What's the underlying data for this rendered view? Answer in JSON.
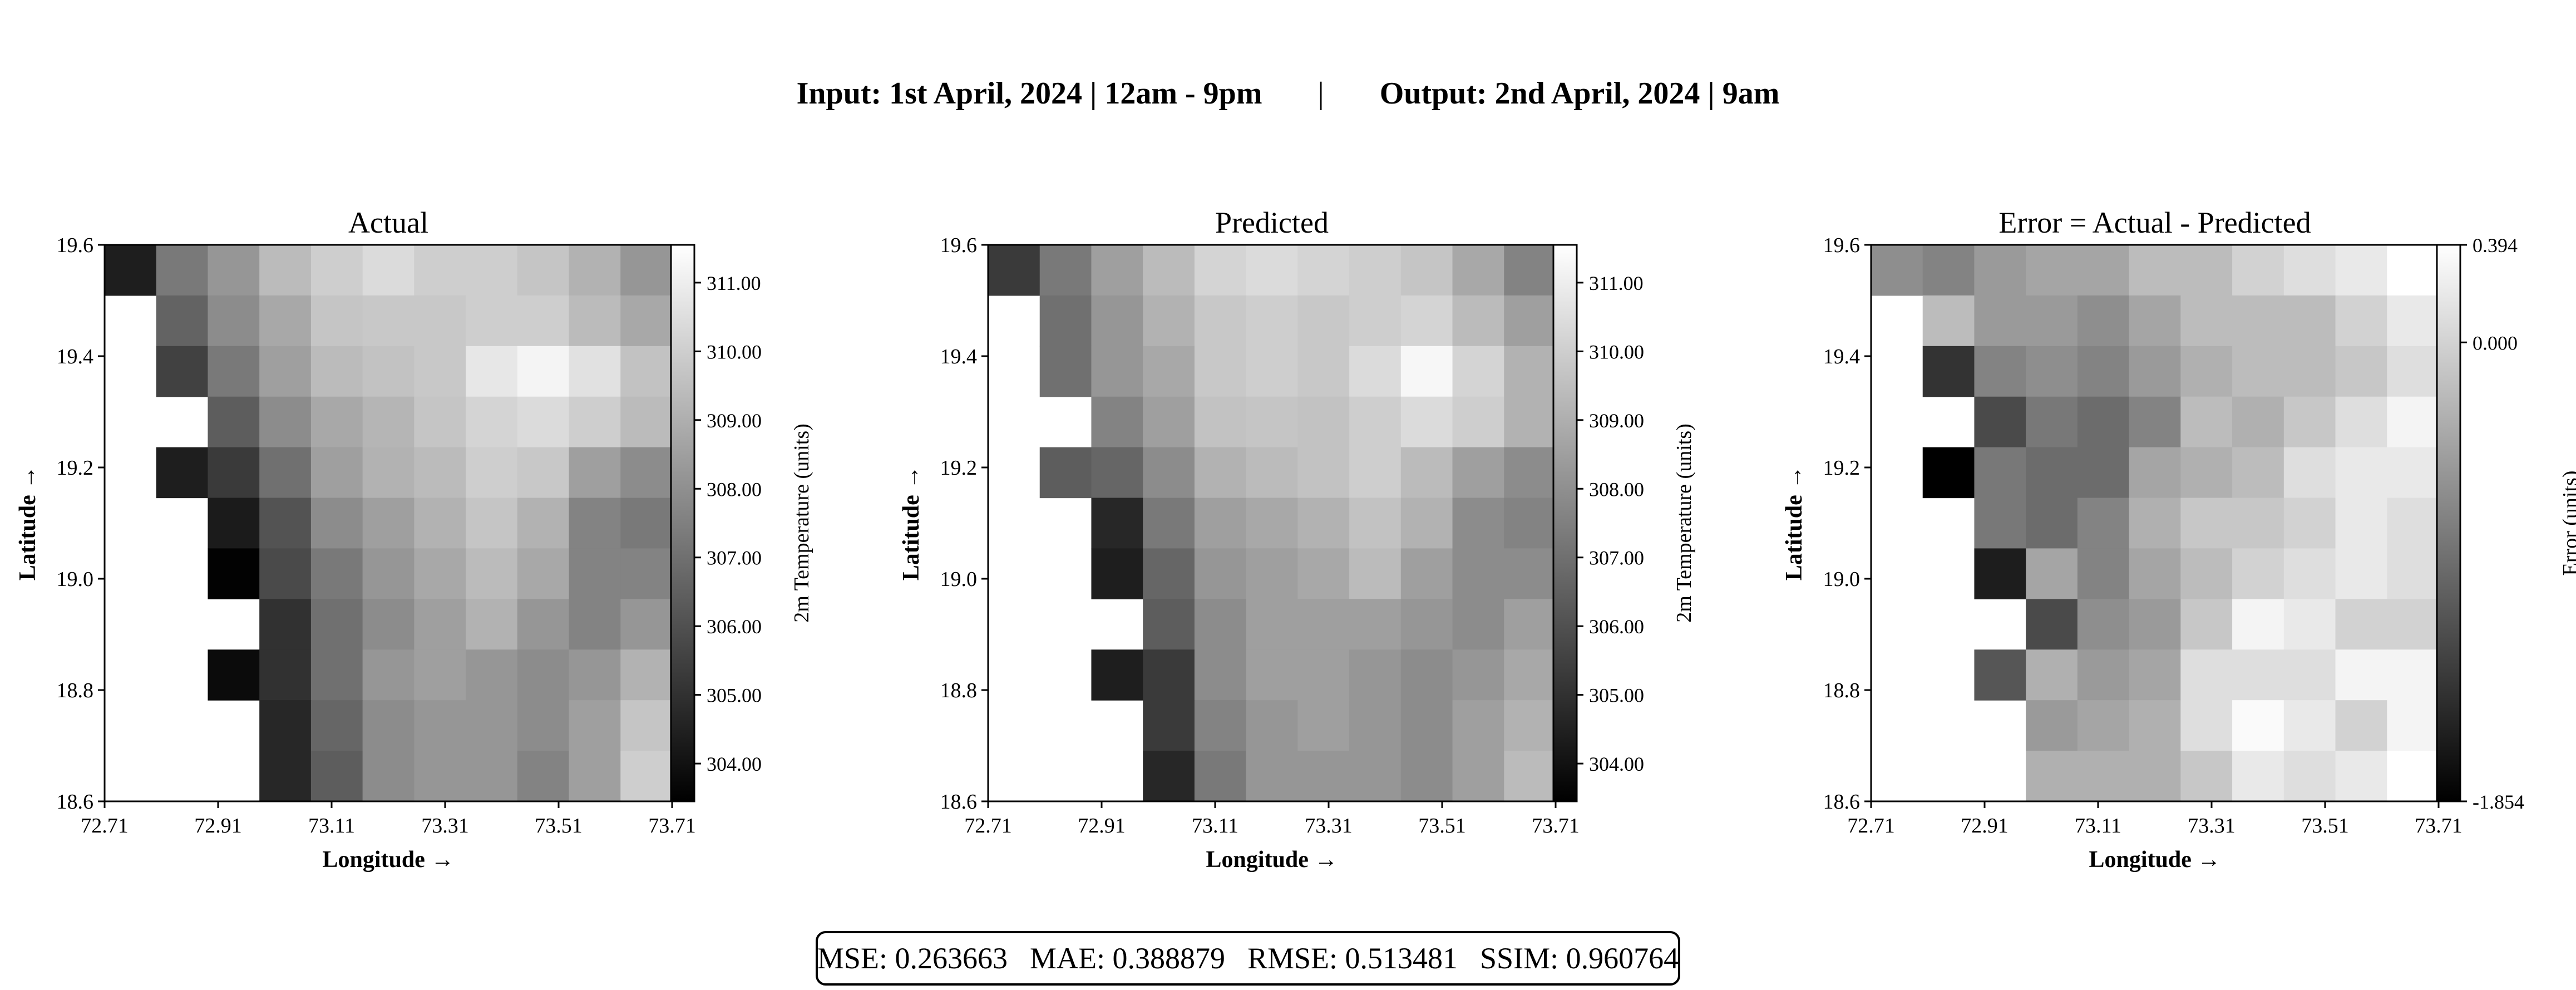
{
  "suptitle": {
    "input": "Input: 1st April, 2024 | 12am - 9pm",
    "separator": "|",
    "output": "Output: 2nd April, 2024 | 9am"
  },
  "metrics": {
    "mse": "MSE: 0.263663",
    "mae": "MAE: 0.388879",
    "rmse": "RMSE: 0.513481",
    "ssim": "SSIM: 0.960764"
  },
  "chart_data": [
    {
      "type": "heatmap",
      "title": "Actual",
      "xlabel": "Longitude  →",
      "ylabel": "Latitude  →",
      "x_ticks": [
        "72.71",
        "72.91",
        "73.11",
        "73.31",
        "73.51",
        "73.71"
      ],
      "y_ticks": [
        "19.6",
        "19.4",
        "19.2",
        "19.0",
        "18.8",
        "18.6"
      ],
      "xlim": [
        72.71,
        73.71
      ],
      "ylim": [
        18.6,
        19.6
      ],
      "colormap": "grayscale",
      "colorbar": {
        "label": "2m Temperature (units)",
        "range": [
          303.45,
          311.55
        ],
        "ticks": [
          "304.00",
          "305.00",
          "306.00",
          "307.00",
          "308.00",
          "309.00",
          "310.00",
          "311.00"
        ],
        "tick_values": [
          304,
          305,
          306,
          307,
          308,
          309,
          310,
          311
        ]
      },
      "rows_top_to_bottom": [
        [
          304.4,
          307.3,
          308.2,
          309.4,
          310.0,
          310.4,
          310.0,
          310.0,
          309.7,
          309.1,
          308.2
        ],
        [
          null,
          306.6,
          307.9,
          308.8,
          309.7,
          309.8,
          309.8,
          310.0,
          310.0,
          309.4,
          308.8
        ],
        [
          null,
          305.5,
          307.3,
          308.5,
          309.4,
          309.6,
          309.8,
          310.8,
          311.2,
          310.6,
          309.6
        ],
        [
          null,
          null,
          306.4,
          307.9,
          308.8,
          309.2,
          309.7,
          310.2,
          310.4,
          310.0,
          309.4
        ],
        [
          null,
          304.4,
          305.3,
          307.0,
          308.5,
          309.1,
          309.4,
          310.0,
          309.8,
          308.5,
          307.9
        ],
        [
          null,
          null,
          304.3,
          306.1,
          307.9,
          308.5,
          309.1,
          309.7,
          309.1,
          307.6,
          307.3
        ],
        [
          null,
          null,
          303.5,
          305.8,
          307.3,
          308.2,
          308.8,
          309.4,
          308.8,
          307.6,
          307.6
        ],
        [
          null,
          null,
          null,
          305.0,
          307.0,
          307.9,
          308.5,
          309.1,
          308.2,
          307.6,
          308.2
        ],
        [
          null,
          null,
          303.8,
          305.0,
          307.0,
          308.2,
          308.5,
          308.2,
          307.9,
          308.2,
          309.1
        ],
        [
          null,
          null,
          null,
          304.7,
          306.7,
          307.9,
          308.2,
          308.2,
          307.9,
          308.5,
          309.7
        ],
        [
          null,
          null,
          null,
          304.7,
          306.4,
          307.9,
          308.2,
          308.2,
          307.6,
          308.5,
          310.0
        ]
      ]
    },
    {
      "type": "heatmap",
      "title": "Predicted",
      "xlabel": "Longitude  →",
      "ylabel": "Latitude  →",
      "x_ticks": [
        "72.71",
        "72.91",
        "73.11",
        "73.31",
        "73.51",
        "73.71"
      ],
      "y_ticks": [
        "19.6",
        "19.4",
        "19.2",
        "19.0",
        "18.8",
        "18.6"
      ],
      "xlim": [
        72.71,
        73.71
      ],
      "ylim": [
        18.6,
        19.6
      ],
      "colormap": "grayscale",
      "colorbar": {
        "label": "2m Temperature (units)",
        "range": [
          303.45,
          311.55
        ],
        "ticks": [
          "304.00",
          "305.00",
          "306.00",
          "307.00",
          "308.00",
          "309.00",
          "310.00",
          "311.00"
        ],
        "tick_values": [
          304,
          305,
          306,
          307,
          308,
          309,
          310,
          311
        ]
      },
      "rows_top_to_bottom": [
        [
          305.3,
          307.3,
          308.5,
          309.4,
          310.2,
          310.4,
          310.2,
          310.0,
          309.7,
          308.8,
          307.6
        ],
        [
          null,
          307.0,
          308.2,
          309.1,
          309.8,
          310.0,
          309.8,
          310.0,
          310.2,
          309.4,
          308.5
        ],
        [
          null,
          307.0,
          308.2,
          308.8,
          309.8,
          310.0,
          309.8,
          310.4,
          311.3,
          310.2,
          309.1
        ],
        [
          null,
          null,
          307.6,
          308.5,
          309.6,
          309.7,
          309.6,
          310.0,
          310.4,
          310.0,
          309.1
        ],
        [
          null,
          306.4,
          306.7,
          307.9,
          309.1,
          309.4,
          309.6,
          310.0,
          309.4,
          308.5,
          307.9
        ],
        [
          null,
          null,
          304.7,
          307.3,
          308.5,
          308.8,
          309.1,
          309.6,
          309.1,
          307.9,
          307.6
        ],
        [
          null,
          null,
          304.4,
          306.7,
          308.2,
          308.5,
          308.8,
          309.4,
          308.5,
          307.9,
          307.9
        ],
        [
          null,
          null,
          null,
          306.4,
          307.9,
          308.5,
          308.5,
          308.5,
          308.2,
          307.9,
          308.5
        ],
        [
          null,
          null,
          304.4,
          305.3,
          307.9,
          308.5,
          308.5,
          308.2,
          307.9,
          308.2,
          308.8
        ],
        [
          null,
          null,
          null,
          305.3,
          307.6,
          308.2,
          308.5,
          308.2,
          307.9,
          308.5,
          309.1
        ],
        [
          null,
          null,
          null,
          304.7,
          307.3,
          308.2,
          308.2,
          308.2,
          307.9,
          308.5,
          309.4
        ]
      ]
    },
    {
      "type": "heatmap",
      "title": "Error = Actual - Predicted",
      "xlabel": "Longitude  →",
      "ylabel": "Latitude  →",
      "x_ticks": [
        "72.71",
        "72.91",
        "73.11",
        "73.31",
        "73.51",
        "73.71"
      ],
      "y_ticks": [
        "19.6",
        "19.4",
        "19.2",
        "19.0",
        "18.8",
        "18.6"
      ],
      "xlim": [
        72.71,
        73.71
      ],
      "ylim": [
        18.6,
        19.6
      ],
      "colormap": "grayscale",
      "colorbar": {
        "label": "Error (units)",
        "range": [
          -1.854,
          0.394
        ],
        "ticks": [
          "0.394",
          "0.000",
          "-1.854"
        ],
        "tick_values": [
          0.394,
          0.0,
          -1.854
        ]
      },
      "rows_top_to_bottom": [
        [
          -0.6,
          -0.7,
          -0.5,
          -0.4,
          -0.4,
          -0.2,
          -0.2,
          0.0,
          0.1,
          0.2,
          0.4
        ],
        [
          null,
          -0.2,
          -0.5,
          -0.5,
          -0.6,
          -0.4,
          -0.2,
          -0.2,
          -0.2,
          0.0,
          0.2
        ],
        [
          null,
          -1.4,
          -0.7,
          -0.6,
          -0.7,
          -0.5,
          -0.3,
          -0.2,
          -0.2,
          -0.1,
          0.1
        ],
        [
          null,
          null,
          -1.2,
          -0.8,
          -0.9,
          -0.7,
          -0.2,
          -0.3,
          -0.1,
          0.1,
          0.3
        ],
        [
          null,
          -1.85,
          -0.8,
          -0.9,
          -0.9,
          -0.4,
          -0.3,
          -0.2,
          0.1,
          0.2,
          0.2
        ],
        [
          null,
          null,
          -0.8,
          -0.9,
          -0.7,
          -0.3,
          -0.1,
          -0.1,
          0.0,
          0.2,
          0.1
        ],
        [
          null,
          null,
          -1.6,
          -0.4,
          -0.7,
          -0.4,
          -0.2,
          0.0,
          0.1,
          0.2,
          0.1
        ],
        [
          null,
          null,
          null,
          -1.2,
          -0.6,
          -0.5,
          -0.1,
          0.3,
          0.2,
          0.0,
          0.0
        ],
        [
          null,
          null,
          -1.1,
          -0.3,
          -0.5,
          -0.4,
          0.1,
          0.1,
          0.1,
          0.3,
          0.3
        ],
        [
          null,
          null,
          null,
          -0.5,
          -0.4,
          -0.3,
          0.1,
          0.35,
          0.2,
          0.0,
          0.3
        ],
        [
          null,
          null,
          null,
          -0.3,
          -0.3,
          -0.3,
          -0.1,
          0.2,
          0.1,
          0.2,
          0.4
        ]
      ]
    }
  ]
}
